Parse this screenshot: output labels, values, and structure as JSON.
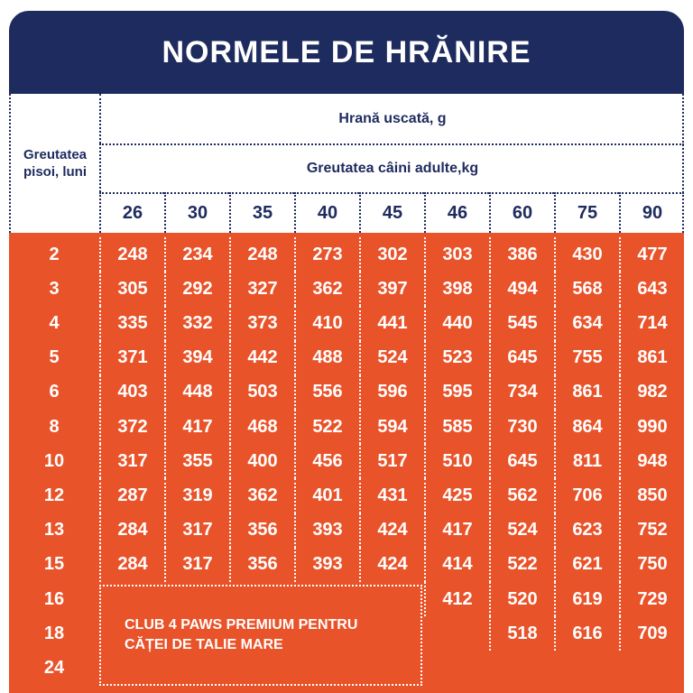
{
  "header": {
    "title": "NORMELE DE HRĂNIRE"
  },
  "table": {
    "age_header": "Greutatea pisoi, luni",
    "food_header": "Hrană uscată, g",
    "weight_header": "Greutatea câini adulte,kg",
    "weights": [
      26,
      30,
      35,
      40,
      45,
      46,
      60,
      75,
      90
    ],
    "rows": [
      {
        "age": 2,
        "values": [
          248,
          234,
          248,
          273,
          302,
          303,
          386,
          430,
          477
        ]
      },
      {
        "age": 3,
        "values": [
          305,
          292,
          327,
          362,
          397,
          398,
          494,
          568,
          643
        ]
      },
      {
        "age": 4,
        "values": [
          335,
          332,
          373,
          410,
          441,
          440,
          545,
          634,
          714
        ]
      },
      {
        "age": 5,
        "values": [
          371,
          394,
          442,
          488,
          524,
          523,
          645,
          755,
          861
        ]
      },
      {
        "age": 6,
        "values": [
          403,
          448,
          503,
          556,
          596,
          595,
          734,
          861,
          982
        ]
      },
      {
        "age": 8,
        "values": [
          372,
          417,
          468,
          522,
          594,
          585,
          730,
          864,
          990
        ]
      },
      {
        "age": 10,
        "values": [
          317,
          355,
          400,
          456,
          517,
          510,
          645,
          811,
          948
        ]
      },
      {
        "age": 12,
        "values": [
          287,
          319,
          362,
          401,
          431,
          425,
          562,
          706,
          850
        ]
      },
      {
        "age": 13,
        "values": [
          284,
          317,
          356,
          393,
          424,
          417,
          524,
          623,
          752
        ]
      },
      {
        "age": 15,
        "values": [
          284,
          317,
          356,
          393,
          424,
          414,
          522,
          621,
          750
        ]
      },
      {
        "age": 16,
        "values": [
          null,
          null,
          null,
          null,
          null,
          412,
          520,
          619,
          729
        ]
      },
      {
        "age": 18,
        "values": [
          null,
          null,
          null,
          null,
          null,
          null,
          518,
          616,
          709
        ]
      },
      {
        "age": 24,
        "values": [
          null,
          null,
          null,
          null,
          null,
          null,
          null,
          null,
          null
        ]
      }
    ]
  },
  "note": [
    "CLUB 4 PAWS PREMIUM PENTRU",
    "CĂȚEI DE TALIE MARE"
  ]
}
